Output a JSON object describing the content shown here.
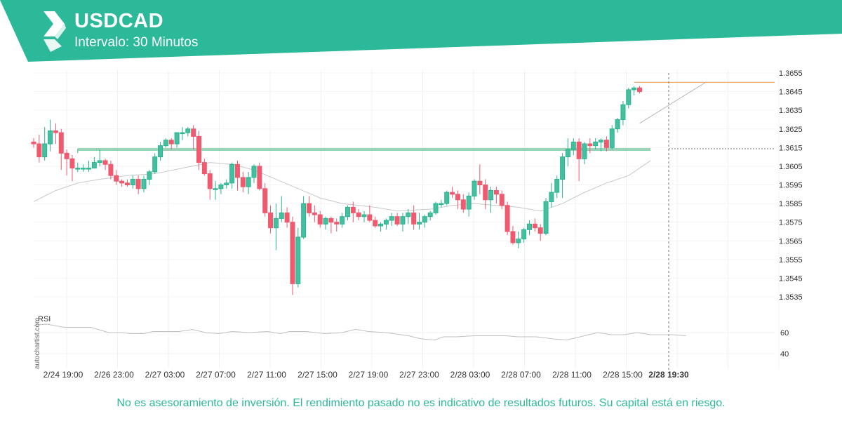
{
  "header": {
    "symbol": "USDCAD",
    "interval": "Intervalo: 30 Minutos"
  },
  "footer": {
    "disclaimer": "No es asesoramiento de inversión. El rendimiento pasado no es indicativo de resultados futuros. Su capital está en riesgo."
  },
  "watermark": "autochartist.com",
  "colors": {
    "brand": "#2bb99a",
    "up": "#26b48f",
    "down": "#ef5a6f",
    "support": "#7cc6a2",
    "resistance": "#f0a060",
    "ma": "#c8c8c8",
    "rsi": "#c0c0c0",
    "projection": "#b8b8b8"
  },
  "chart_data": [
    {
      "type": "candlestick",
      "series": [
        {
          "name": "USDCAD",
          "role": "price"
        },
        {
          "role": "moving-average"
        }
      ],
      "ylim": [
        1.353,
        1.3657
      ],
      "yticks": [
        "1.3655",
        "1.3645",
        "1.3635",
        "1.3625",
        "1.3615",
        "1.3605",
        "1.3595",
        "1.3585",
        "1.3575",
        "1.3565",
        "1.3555",
        "1.3545",
        "1.3535"
      ],
      "xticks": [
        "2/24 19:00",
        "2/26 23:00",
        "2/27 03:00",
        "2/27 07:00",
        "2/27 11:00",
        "2/27 15:00",
        "2/27 19:00",
        "2/27 23:00",
        "2/28 03:00",
        "2/28 07:00",
        "2/28 11:00",
        "2/28 15:00"
      ],
      "highlight_x": "2/28 19:30",
      "candles": [
        [
          1.3618,
          1.362,
          1.3615,
          1.3617
        ],
        [
          1.3617,
          1.3622,
          1.3607,
          1.361
        ],
        [
          1.361,
          1.3626,
          1.3608,
          1.3617
        ],
        [
          1.3617,
          1.363,
          1.3613,
          1.3624
        ],
        [
          1.3624,
          1.3628,
          1.3617,
          1.3623
        ],
        [
          1.3623,
          1.3625,
          1.3603,
          1.3612
        ],
        [
          1.3612,
          1.3614,
          1.36,
          1.3609
        ],
        [
          1.3609,
          1.3611,
          1.3597,
          1.3604
        ],
        [
          1.3604,
          1.3607,
          1.3602,
          1.3604
        ],
        [
          1.3604,
          1.3606,
          1.3602,
          1.3604
        ],
        [
          1.3604,
          1.3608,
          1.3602,
          1.3604
        ],
        [
          1.3604,
          1.361,
          1.3604,
          1.3607
        ],
        [
          1.3607,
          1.3614,
          1.3605,
          1.3608
        ],
        [
          1.3608,
          1.3609,
          1.3603,
          1.3606
        ],
        [
          1.3606,
          1.3608,
          1.3598,
          1.36
        ],
        [
          1.36,
          1.3603,
          1.3595,
          1.3597
        ],
        [
          1.3597,
          1.3598,
          1.3594,
          1.3596
        ],
        [
          1.3596,
          1.3598,
          1.3594,
          1.3595
        ],
        [
          1.3595,
          1.36,
          1.3593,
          1.3598
        ],
        [
          1.3598,
          1.36,
          1.359,
          1.3593
        ],
        [
          1.3593,
          1.36,
          1.3591,
          1.3598
        ],
        [
          1.3598,
          1.3603,
          1.3595,
          1.3602
        ],
        [
          1.3602,
          1.3612,
          1.3601,
          1.361
        ],
        [
          1.361,
          1.3618,
          1.3608,
          1.3616
        ],
        [
          1.3616,
          1.362,
          1.3615,
          1.3619
        ],
        [
          1.3619,
          1.362,
          1.3614,
          1.3617
        ],
        [
          1.3617,
          1.3623,
          1.3615,
          1.3623
        ],
        [
          1.3623,
          1.3626,
          1.3619,
          1.3623
        ],
        [
          1.3623,
          1.3626,
          1.3621,
          1.3625
        ],
        [
          1.3625,
          1.3627,
          1.3614,
          1.3621
        ],
        [
          1.3621,
          1.3624,
          1.3603,
          1.3607
        ],
        [
          1.3607,
          1.3609,
          1.36,
          1.3601
        ],
        [
          1.3601,
          1.3603,
          1.3587,
          1.3593
        ],
        [
          1.3593,
          1.3597,
          1.3587,
          1.3593
        ],
        [
          1.3593,
          1.3596,
          1.359,
          1.3595
        ],
        [
          1.3595,
          1.3598,
          1.3593,
          1.3596
        ],
        [
          1.3596,
          1.3607,
          1.3593,
          1.3606
        ],
        [
          1.3606,
          1.3608,
          1.3592,
          1.3599
        ],
        [
          1.3599,
          1.3602,
          1.3591,
          1.3594
        ],
        [
          1.3594,
          1.3602,
          1.359,
          1.3599
        ],
        [
          1.3599,
          1.3606,
          1.3596,
          1.3605
        ],
        [
          1.3605,
          1.3607,
          1.3592,
          1.3593
        ],
        [
          1.3593,
          1.3596,
          1.3578,
          1.358
        ],
        [
          1.358,
          1.3584,
          1.3569,
          1.3572
        ],
        [
          1.3572,
          1.3585,
          1.356,
          1.3577
        ],
        [
          1.3577,
          1.3589,
          1.3575,
          1.358
        ],
        [
          1.358,
          1.3583,
          1.3572,
          1.3575
        ],
        [
          1.3575,
          1.3578,
          1.3536,
          1.3542
        ],
        [
          1.3542,
          1.3572,
          1.354,
          1.3567
        ],
        [
          1.3567,
          1.3589,
          1.3566,
          1.3585
        ],
        [
          1.3585,
          1.3589,
          1.3578,
          1.358
        ],
        [
          1.358,
          1.3584,
          1.3575,
          1.3579
        ],
        [
          1.3579,
          1.3581,
          1.3572,
          1.3574
        ],
        [
          1.3574,
          1.3578,
          1.3571,
          1.3577
        ],
        [
          1.3577,
          1.3578,
          1.3569,
          1.3575
        ],
        [
          1.3575,
          1.3577,
          1.357,
          1.3574
        ],
        [
          1.3574,
          1.358,
          1.3572,
          1.3578
        ],
        [
          1.3578,
          1.3584,
          1.3576,
          1.3583
        ],
        [
          1.3583,
          1.3586,
          1.3575,
          1.358
        ],
        [
          1.358,
          1.3582,
          1.3576,
          1.3578
        ],
        [
          1.3578,
          1.3581,
          1.3575,
          1.3579
        ],
        [
          1.3579,
          1.3584,
          1.3575,
          1.3576
        ],
        [
          1.3576,
          1.3578,
          1.3572,
          1.3573
        ],
        [
          1.3573,
          1.3575,
          1.357,
          1.3574
        ],
        [
          1.3574,
          1.3577,
          1.3571,
          1.3576
        ],
        [
          1.3576,
          1.358,
          1.3573,
          1.3578
        ],
        [
          1.3578,
          1.358,
          1.3573,
          1.3574
        ],
        [
          1.3574,
          1.358,
          1.357,
          1.3578
        ],
        [
          1.3578,
          1.3582,
          1.3574,
          1.358
        ],
        [
          1.358,
          1.3584,
          1.3571,
          1.3574
        ],
        [
          1.3574,
          1.358,
          1.3571,
          1.3575
        ],
        [
          1.3575,
          1.3579,
          1.3572,
          1.3578
        ],
        [
          1.3578,
          1.3581,
          1.3576,
          1.358
        ],
        [
          1.358,
          1.3586,
          1.3579,
          1.3585
        ],
        [
          1.3585,
          1.3587,
          1.3583,
          1.3585
        ],
        [
          1.3585,
          1.3592,
          1.3584,
          1.3591
        ],
        [
          1.3591,
          1.3594,
          1.3588,
          1.359
        ],
        [
          1.359,
          1.3592,
          1.3582,
          1.3587
        ],
        [
          1.3587,
          1.359,
          1.358,
          1.3582
        ],
        [
          1.3582,
          1.3591,
          1.3578,
          1.3589
        ],
        [
          1.3589,
          1.3598,
          1.3587,
          1.3597
        ],
        [
          1.3597,
          1.3606,
          1.359,
          1.3595
        ],
        [
          1.3595,
          1.3598,
          1.3582,
          1.3587
        ],
        [
          1.3587,
          1.3594,
          1.358,
          1.3592
        ],
        [
          1.3592,
          1.3594,
          1.3585,
          1.359
        ],
        [
          1.359,
          1.3592,
          1.3582,
          1.3584
        ],
        [
          1.3584,
          1.3586,
          1.3568,
          1.357
        ],
        [
          1.357,
          1.3573,
          1.3563,
          1.3564
        ],
        [
          1.3564,
          1.357,
          1.3561,
          1.3566
        ],
        [
          1.3566,
          1.3572,
          1.3564,
          1.3571
        ],
        [
          1.3571,
          1.3576,
          1.3568,
          1.3574
        ],
        [
          1.3574,
          1.3577,
          1.357,
          1.3572
        ],
        [
          1.3572,
          1.3574,
          1.3565,
          1.3569
        ],
        [
          1.3569,
          1.3588,
          1.3568,
          1.3586
        ],
        [
          1.3586,
          1.3596,
          1.3583,
          1.3591
        ],
        [
          1.3591,
          1.36,
          1.3588,
          1.3598
        ],
        [
          1.3598,
          1.3612,
          1.3588,
          1.361
        ],
        [
          1.361,
          1.362,
          1.3605,
          1.3614
        ],
        [
          1.3614,
          1.362,
          1.3611,
          1.3618
        ],
        [
          1.3618,
          1.362,
          1.3597,
          1.3609
        ],
        [
          1.3609,
          1.3618,
          1.3606,
          1.3617
        ],
        [
          1.3617,
          1.362,
          1.3612,
          1.3616
        ],
        [
          1.3616,
          1.362,
          1.3614,
          1.3618
        ],
        [
          1.3618,
          1.362,
          1.3613,
          1.3619
        ],
        [
          1.3619,
          1.3621,
          1.3613,
          1.3615
        ],
        [
          1.3615,
          1.3627,
          1.3614,
          1.3625
        ],
        [
          1.3625,
          1.3631,
          1.3623,
          1.363
        ],
        [
          1.363,
          1.364,
          1.3627,
          1.3638
        ],
        [
          1.3638,
          1.3647,
          1.3636,
          1.3646
        ],
        [
          1.3646,
          1.3648,
          1.3643,
          1.3647
        ],
        [
          1.3647,
          1.3648,
          1.3644,
          1.3645
        ]
      ],
      "moving_average": [
        [
          0,
          1.3586
        ],
        [
          4,
          1.3592
        ],
        [
          8,
          1.3596
        ],
        [
          12,
          1.3598
        ],
        [
          17,
          1.36
        ],
        [
          22,
          1.3601
        ],
        [
          27,
          1.3604
        ],
        [
          32,
          1.3607
        ],
        [
          36,
          1.3606
        ],
        [
          40,
          1.3603
        ],
        [
          44,
          1.3598
        ],
        [
          48,
          1.3593
        ],
        [
          52,
          1.3588
        ],
        [
          56,
          1.3585
        ],
        [
          62,
          1.3583
        ],
        [
          66,
          1.3581
        ],
        [
          72,
          1.3582
        ],
        [
          76,
          1.3584
        ],
        [
          80,
          1.3585
        ],
        [
          84,
          1.3584
        ],
        [
          88,
          1.3583
        ],
        [
          92,
          1.3581
        ],
        [
          96,
          1.3585
        ],
        [
          100,
          1.3591
        ],
        [
          104,
          1.3596
        ],
        [
          108,
          1.36
        ],
        [
          112,
          1.3608
        ]
      ],
      "support": {
        "value": 1.3614,
        "from": 8,
        "to": 112
      },
      "resistance": {
        "value": 1.365,
        "from": 109,
        "to": 120
      },
      "projection": {
        "from": [
          110,
          1.3628
        ],
        "to": [
          122,
          1.365
        ]
      }
    },
    {
      "type": "line",
      "title": "RSI",
      "yticks": [
        "60",
        "40"
      ],
      "ylim": [
        30,
        70
      ],
      "values": [
        [
          0,
          67
        ],
        [
          3,
          68
        ],
        [
          7,
          65
        ],
        [
          13,
          65
        ],
        [
          17,
          60
        ],
        [
          20,
          60
        ],
        [
          22,
          59
        ],
        [
          25,
          59
        ],
        [
          27,
          61
        ],
        [
          30,
          61
        ],
        [
          33,
          61
        ],
        [
          36,
          63
        ],
        [
          39,
          60
        ],
        [
          42,
          59
        ],
        [
          45,
          61
        ],
        [
          49,
          60
        ],
        [
          53,
          61
        ],
        [
          56,
          59
        ],
        [
          58,
          61
        ],
        [
          62,
          61
        ],
        [
          66,
          59
        ],
        [
          70,
          60
        ],
        [
          73,
          63
        ],
        [
          76,
          61
        ],
        [
          80,
          60
        ],
        [
          85,
          57
        ],
        [
          88,
          54
        ],
        [
          91,
          53
        ],
        [
          93,
          56
        ],
        [
          96,
          56
        ],
        [
          100,
          57
        ],
        [
          103,
          57
        ],
        [
          107,
          57
        ],
        [
          110,
          56
        ],
        [
          114,
          56
        ],
        [
          118,
          54
        ],
        [
          121,
          53
        ],
        [
          123,
          55
        ],
        [
          126,
          58
        ],
        [
          128,
          60
        ],
        [
          131,
          58
        ],
        [
          134,
          58
        ],
        [
          137,
          60
        ],
        [
          140,
          58
        ],
        [
          145,
          58
        ],
        [
          148,
          57
        ]
      ]
    }
  ]
}
